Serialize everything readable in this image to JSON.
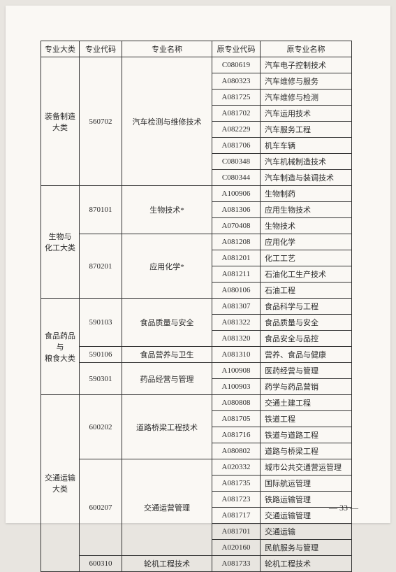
{
  "headers": {
    "c1": "专业大类",
    "c2": "专业代码",
    "c3": "专业名称",
    "c4": "原专业代码",
    "c5": "原专业名称"
  },
  "groups": [
    {
      "cat": "装备制造\n大类",
      "subs": [
        {
          "code": "560702",
          "name": "汽车检测与维修技术",
          "rows": [
            {
              "oc": "C080619",
              "on": "汽车电子控制技术"
            },
            {
              "oc": "A080323",
              "on": "汽车维修与服务"
            },
            {
              "oc": "A081725",
              "on": "汽车维修与检测"
            },
            {
              "oc": "A081702",
              "on": "汽车运用技术"
            },
            {
              "oc": "A082229",
              "on": "汽车服务工程"
            },
            {
              "oc": "A081706",
              "on": "机车车辆"
            },
            {
              "oc": "C080348",
              "on": "汽车机械制造技术"
            },
            {
              "oc": "C080344",
              "on": "汽车制造与装调技术"
            }
          ]
        }
      ]
    },
    {
      "cat": "生物与\n化工大类",
      "subs": [
        {
          "code": "870101",
          "name": "生物技术*",
          "rows": [
            {
              "oc": "A100906",
              "on": "生物制药"
            },
            {
              "oc": "A081306",
              "on": "应用生物技术"
            },
            {
              "oc": "A070408",
              "on": "生物技术"
            }
          ]
        },
        {
          "code": "870201",
          "name": "应用化学*",
          "rows": [
            {
              "oc": "A081208",
              "on": "应用化学"
            },
            {
              "oc": "A081201",
              "on": "化工工艺"
            },
            {
              "oc": "A081211",
              "on": "石油化工生产技术"
            },
            {
              "oc": "A080106",
              "on": "石油工程"
            }
          ]
        }
      ]
    },
    {
      "cat": "食品药品与\n粮食大类",
      "subs": [
        {
          "code": "590103",
          "name": "食品质量与安全",
          "rows": [
            {
              "oc": "A081307",
              "on": "食品科学与工程"
            },
            {
              "oc": "A081322",
              "on": "食品质量与安全"
            },
            {
              "oc": "A081320",
              "on": "食品安全与品控"
            }
          ]
        },
        {
          "code": "590106",
          "name": "食品营养与卫生",
          "rows": [
            {
              "oc": "A081310",
              "on": "营养、食品与健康"
            }
          ]
        },
        {
          "code": "590301",
          "name": "药品经营与管理",
          "rows": [
            {
              "oc": "A100908",
              "on": "医药经营与管理"
            },
            {
              "oc": "A100903",
              "on": "药学与药品营销"
            }
          ]
        }
      ]
    },
    {
      "cat": "交通运输\n大类",
      "subs": [
        {
          "code": "600202",
          "name": "道路桥梁工程技术",
          "rows": [
            {
              "oc": "A080808",
              "on": "交通土建工程"
            },
            {
              "oc": "A081705",
              "on": "铁道工程"
            },
            {
              "oc": "A081716",
              "on": "铁道与道路工程"
            },
            {
              "oc": "A080802",
              "on": "道路与桥梁工程"
            }
          ]
        },
        {
          "code": "600207",
          "name": "交通运营管理",
          "rows": [
            {
              "oc": "A020332",
              "on": "城市公共交通营运管理"
            },
            {
              "oc": "A081735",
              "on": "国际航运管理"
            },
            {
              "oc": "A081723",
              "on": "铁路运输管理"
            },
            {
              "oc": "A081717",
              "on": "交通运输管理"
            },
            {
              "oc": "A081701",
              "on": "交通运输"
            },
            {
              "oc": "A020160",
              "on": "民航服务与管理"
            }
          ]
        },
        {
          "code": "600310",
          "name": "轮机工程技术",
          "rows": [
            {
              "oc": "A081733",
              "on": "轮机工程技术"
            }
          ]
        }
      ]
    }
  ],
  "page_number": "— 33 —"
}
